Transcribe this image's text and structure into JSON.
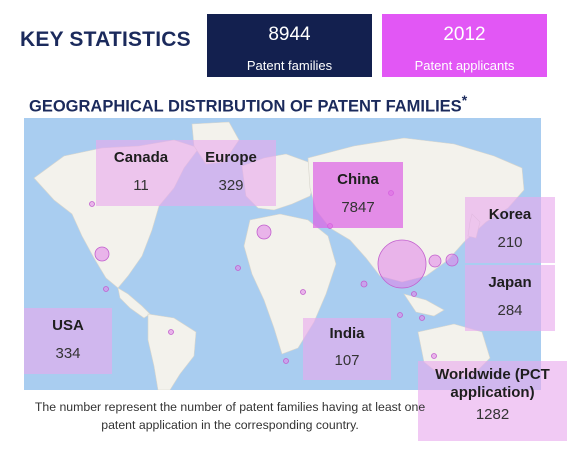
{
  "header": {
    "key_statistics_title": "KEY STATISTICS",
    "geo_title": "GEOGRAPHICAL DISTRIBUTION OF PATENT FAMILIES",
    "geo_title_marker": "*"
  },
  "stats": {
    "patent_families": {
      "value": "8944",
      "label": "Patent families"
    },
    "patent_applicants": {
      "value": "2012",
      "label": "Patent applicants"
    }
  },
  "countries": {
    "canada": {
      "name": "Canada",
      "value": "11"
    },
    "europe": {
      "name": "Europe",
      "value": "329"
    },
    "china": {
      "name": "China",
      "value": "7847"
    },
    "korea": {
      "name": "Korea",
      "value": "210"
    },
    "japan": {
      "name": "Japan",
      "value": "284"
    },
    "usa": {
      "name": "USA",
      "value": "334"
    },
    "india": {
      "name": "India",
      "value": "107"
    },
    "worldwide": {
      "name": "Worldwide (PCT application)",
      "value": "1282"
    }
  },
  "footnote": "The number represent the number of patent families having at least one patent application in the corresponding country.",
  "colors": {
    "navy": "#13204f",
    "magenta": "#e257f5",
    "ocean": "#a9cdf0",
    "land": "#f2f2ec",
    "bubble": "#d86ee0"
  }
}
